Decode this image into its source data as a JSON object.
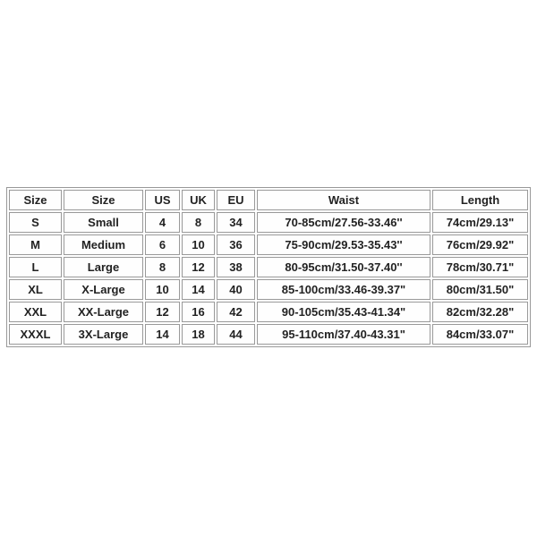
{
  "colors": {
    "background": "#ffffff",
    "table_border": "#999999",
    "text": "#222222"
  },
  "chart_data": {
    "type": "table",
    "headers": [
      "Size",
      "Size",
      "US",
      "UK",
      "EU",
      "Waist",
      "Length"
    ],
    "rows": [
      [
        "S",
        "Small",
        "4",
        "8",
        "34",
        "70-85cm/27.56-33.46''",
        "74cm/29.13\""
      ],
      [
        "M",
        "Medium",
        "6",
        "10",
        "36",
        "75-90cm/29.53-35.43''",
        "76cm/29.92\""
      ],
      [
        "L",
        "Large",
        "8",
        "12",
        "38",
        "80-95cm/31.50-37.40''",
        "78cm/30.71\""
      ],
      [
        "XL",
        "X-Large",
        "10",
        "14",
        "40",
        "85-100cm/33.46-39.37\"",
        "80cm/31.50\""
      ],
      [
        "XXL",
        "XX-Large",
        "12",
        "16",
        "42",
        "90-105cm/35.43-41.34\"",
        "82cm/32.28\""
      ],
      [
        "XXXL",
        "3X-Large",
        "14",
        "18",
        "44",
        "95-110cm/37.40-43.31\"",
        "84cm/33.07\""
      ]
    ]
  }
}
